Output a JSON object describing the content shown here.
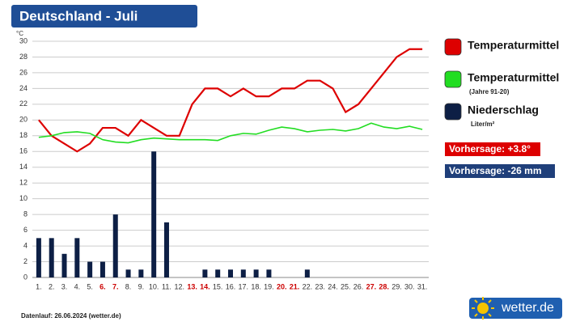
{
  "chart_data": {
    "type": "combo",
    "title": "Deutschland - Juli",
    "y_unit": "°C",
    "categories": [
      "1.",
      "2.",
      "3.",
      "4.",
      "5.",
      "6.",
      "7.",
      "8.",
      "9.",
      "10.",
      "11.",
      "12.",
      "13.",
      "14.",
      "15.",
      "16.",
      "17.",
      "18.",
      "19.",
      "20.",
      "21.",
      "22.",
      "23.",
      "24.",
      "25.",
      "26.",
      "27.",
      "28.",
      "29.",
      "30.",
      "31."
    ],
    "category_colors": [
      "#333",
      "#333",
      "#333",
      "#333",
      "#333",
      "#cc0000",
      "#cc0000",
      "#333",
      "#333",
      "#333",
      "#333",
      "#333",
      "#cc0000",
      "#cc0000",
      "#333",
      "#333",
      "#333",
      "#333",
      "#333",
      "#cc0000",
      "#cc0000",
      "#333",
      "#333",
      "#333",
      "#333",
      "#333",
      "#cc0000",
      "#cc0000",
      "#333",
      "#333",
      "#333"
    ],
    "ylim": [
      0,
      30
    ],
    "yticks": [
      0,
      2,
      4,
      6,
      8,
      10,
      12,
      14,
      16,
      18,
      20,
      22,
      24,
      26,
      28,
      30
    ],
    "grid": true,
    "series": [
      {
        "name": "Temperaturmittel",
        "type": "line",
        "color": "#dd0000",
        "values": [
          20,
          18,
          17,
          16,
          17,
          19,
          19,
          18,
          20,
          19,
          18,
          18,
          22,
          24,
          24,
          23,
          24,
          23,
          23,
          24,
          24,
          25,
          25,
          24,
          21,
          22,
          24,
          26,
          28,
          29,
          29
        ]
      },
      {
        "name": "Temperaturmittel",
        "note": "(Jahre 91-20)",
        "type": "line",
        "color": "#22dd22",
        "values": [
          17.8,
          18.0,
          18.4,
          18.5,
          18.3,
          17.5,
          17.2,
          17.1,
          17.5,
          17.7,
          17.6,
          17.5,
          17.5,
          17.5,
          17.4,
          18.0,
          18.3,
          18.2,
          18.7,
          19.1,
          18.9,
          18.5,
          18.7,
          18.8,
          18.6,
          18.9,
          19.6,
          19.1,
          18.9,
          19.2,
          18.8
        ]
      },
      {
        "name": "Niederschlag",
        "note": "Liter/m²",
        "type": "bar",
        "color": "#0d1f45",
        "values": [
          5,
          5,
          3,
          5,
          2,
          2,
          8,
          1,
          1,
          16,
          7,
          0,
          0,
          1,
          1,
          1,
          1,
          1,
          1,
          0,
          0,
          1,
          0,
          0,
          0,
          0,
          0,
          0,
          0,
          0,
          0
        ]
      }
    ],
    "annotations": [
      {
        "text": "Vorhersage: +3.8°",
        "color": "#dd0000"
      },
      {
        "text": "Vorhersage: -26 mm",
        "color": "#1f3f7a"
      }
    ],
    "footer": "Datenlauf: 26.06.2024 (wetter.de)",
    "logo": "wetter.de"
  }
}
